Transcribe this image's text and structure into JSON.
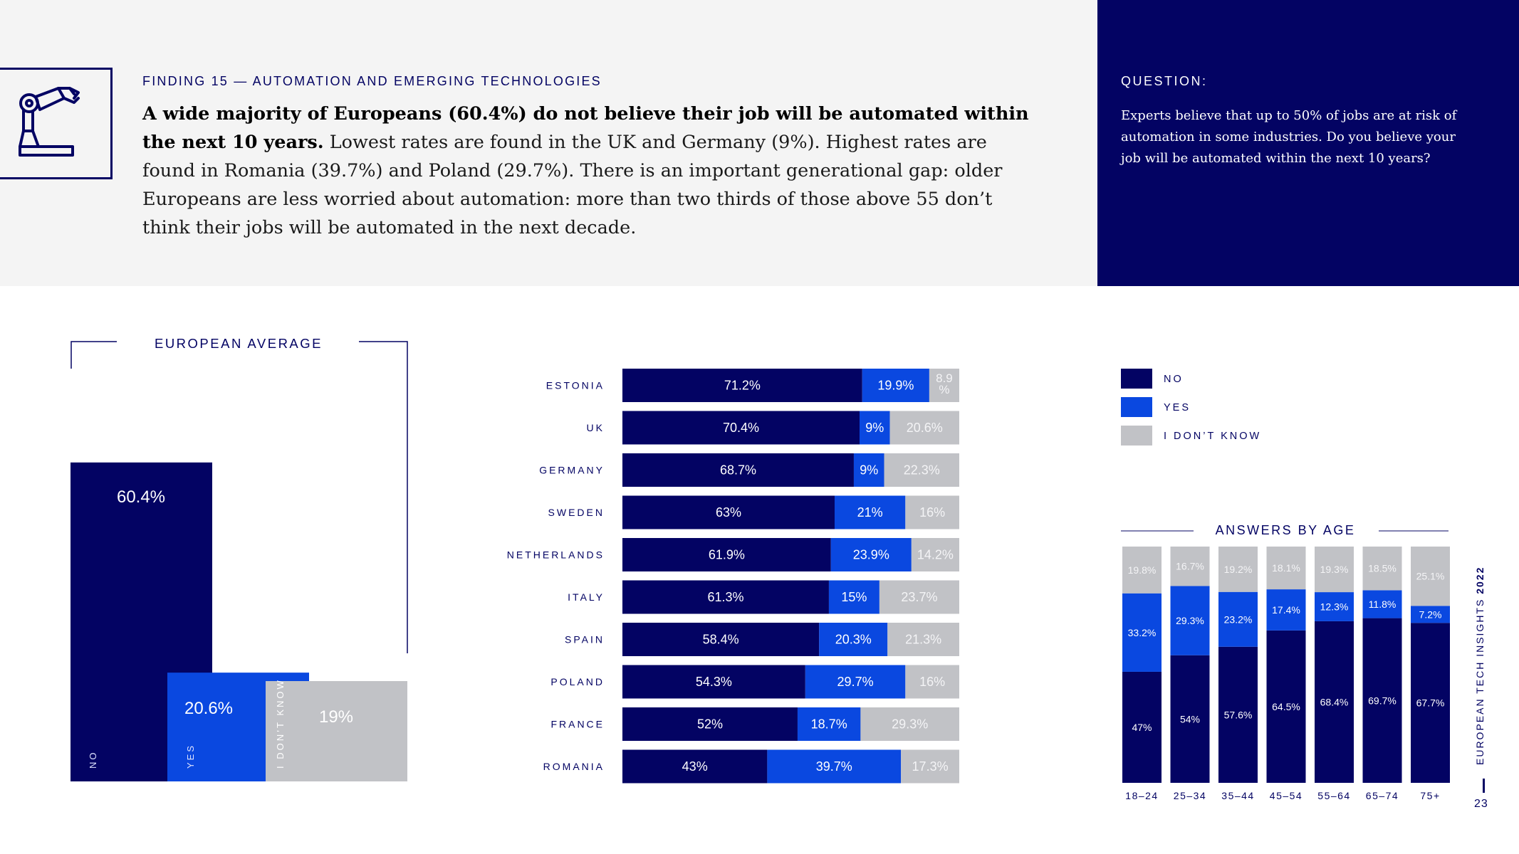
{
  "header": {
    "finding_label": "FINDING 15 — AUTOMATION AND EMERGING TECHNOLOGIES",
    "finding_bold": "A wide majority of Europeans (60.4%) do not believe their job will be automated within the next 10 years.",
    "finding_rest": " Lowest rates are found in the UK and Germany (9%). Highest rates are found in Romania (39.7%) and Poland (29.7%). There is an important generational gap: older Europeans are less worried about automation: more than two thirds of those above 55 don’t think their jobs will be automated in the next decade.",
    "icon": "robot-arm-icon"
  },
  "question": {
    "label": "QUESTION:",
    "text": "Experts believe that up to 50% of jobs are at risk of automation in some industries. Do you believe your job will be automated within the next 10 years?"
  },
  "colors": {
    "no": "#030363",
    "yes": "#0a48e0",
    "dont_know": "#c1c2c6",
    "panel": "#030363"
  },
  "legend": {
    "no": "NO",
    "yes": "YES",
    "dont_know": "I DON’T KNOW"
  },
  "footer": {
    "side_title_prefix": "EUROPEAN TECH INSIGHTS ",
    "side_title_year": "2022",
    "page_number": "23"
  },
  "chart_data": [
    {
      "type": "bar",
      "title": "EUROPEAN AVERAGE",
      "categories": [
        "NO",
        "YES",
        "I DON’T KNOW"
      ],
      "values": [
        60.4,
        20.6,
        19
      ],
      "labels": [
        "60.4%",
        "20.6%",
        "19%"
      ]
    },
    {
      "type": "bar",
      "stacked": true,
      "orientation": "horizontal",
      "categories": [
        "ESTONIA",
        "UK",
        "GERMANY",
        "SWEDEN",
        "NETHERLANDS",
        "ITALY",
        "SPAIN",
        "POLAND",
        "FRANCE",
        "ROMANIA"
      ],
      "series": [
        {
          "name": "NO",
          "values": [
            71.2,
            70.4,
            68.7,
            63,
            61.9,
            61.3,
            58.4,
            54.3,
            52,
            43
          ],
          "labels": [
            "71.2%",
            "70.4%",
            "68.7%",
            "63%",
            "61.9%",
            "61.3%",
            "58.4%",
            "54.3%",
            "52%",
            "43%"
          ]
        },
        {
          "name": "YES",
          "values": [
            19.9,
            9,
            9,
            21,
            23.9,
            15,
            20.3,
            29.7,
            18.7,
            39.7
          ],
          "labels": [
            "19.9%",
            "9%",
            "9%",
            "21%",
            "23.9%",
            "15%",
            "20.3%",
            "29.7%",
            "18.7%",
            "39.7%"
          ]
        },
        {
          "name": "I DON’T KNOW",
          "values": [
            8.9,
            20.6,
            22.3,
            16,
            14.2,
            23.7,
            21.3,
            16,
            29.3,
            17.3
          ],
          "labels": [
            "8.9 %",
            "20.6%",
            "22.3%",
            "16%",
            "14.2%",
            "23.7%",
            "21.3%",
            "16%",
            "29.3%",
            "17.3%"
          ]
        }
      ]
    },
    {
      "type": "bar",
      "stacked": true,
      "title": "ANSWERS BY AGE",
      "categories": [
        "18–24",
        "25–34",
        "35–44",
        "45–54",
        "55–64",
        "65–74",
        "75+"
      ],
      "series": [
        {
          "name": "NO",
          "values": [
            47,
            54,
            57.6,
            64.5,
            68.4,
            69.7,
            67.7
          ],
          "labels": [
            "47%",
            "54%",
            "57.6%",
            "64.5%",
            "68.4%",
            "69.7%",
            "67.7%"
          ]
        },
        {
          "name": "YES",
          "values": [
            33.2,
            29.3,
            23.2,
            17.4,
            12.3,
            11.8,
            7.2
          ],
          "labels": [
            "33.2%",
            "29.3%",
            "23.2%",
            "17.4%",
            "12.3%",
            "11.8%",
            "7.2%"
          ]
        },
        {
          "name": "I DON’T KNOW",
          "values": [
            19.8,
            16.7,
            19.2,
            18.1,
            19.3,
            18.5,
            25.1
          ],
          "labels": [
            "19.8%",
            "16.7%",
            "19.2%",
            "18.1%",
            "19.3%",
            "18.5%",
            "25.1%"
          ]
        }
      ]
    }
  ]
}
